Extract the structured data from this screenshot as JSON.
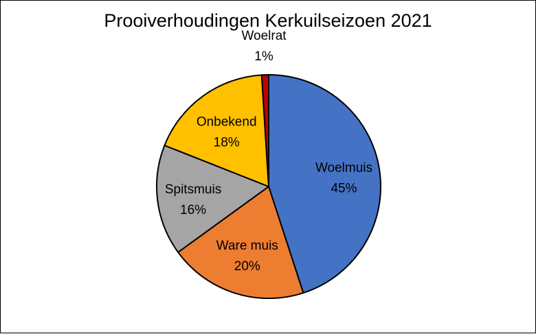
{
  "chart_data": {
    "type": "pie",
    "title": "Prooiverhoudingen Kerkuilseizoen 2021",
    "slices": [
      {
        "label": "Woelmuis",
        "value": 45,
        "pct": "45%",
        "color": "#4472C4",
        "text_color": "#000000"
      },
      {
        "label": "Ware muis",
        "value": 20,
        "pct": "20%",
        "color": "#ED7D31",
        "text_color": "#000000"
      },
      {
        "label": "Spitsmuis",
        "value": 16,
        "pct": "16%",
        "color": "#A5A5A5",
        "text_color": "#000000"
      },
      {
        "label": "Onbekend",
        "value": 18,
        "pct": "18%",
        "color": "#FFC000",
        "text_color": "#000000"
      },
      {
        "label": "Woelrat",
        "value": 1,
        "pct": "1%",
        "color": "#C00000",
        "text_color": "#000000"
      }
    ],
    "start_angle_deg": 0,
    "direction": "clockwise",
    "legend": "none"
  }
}
